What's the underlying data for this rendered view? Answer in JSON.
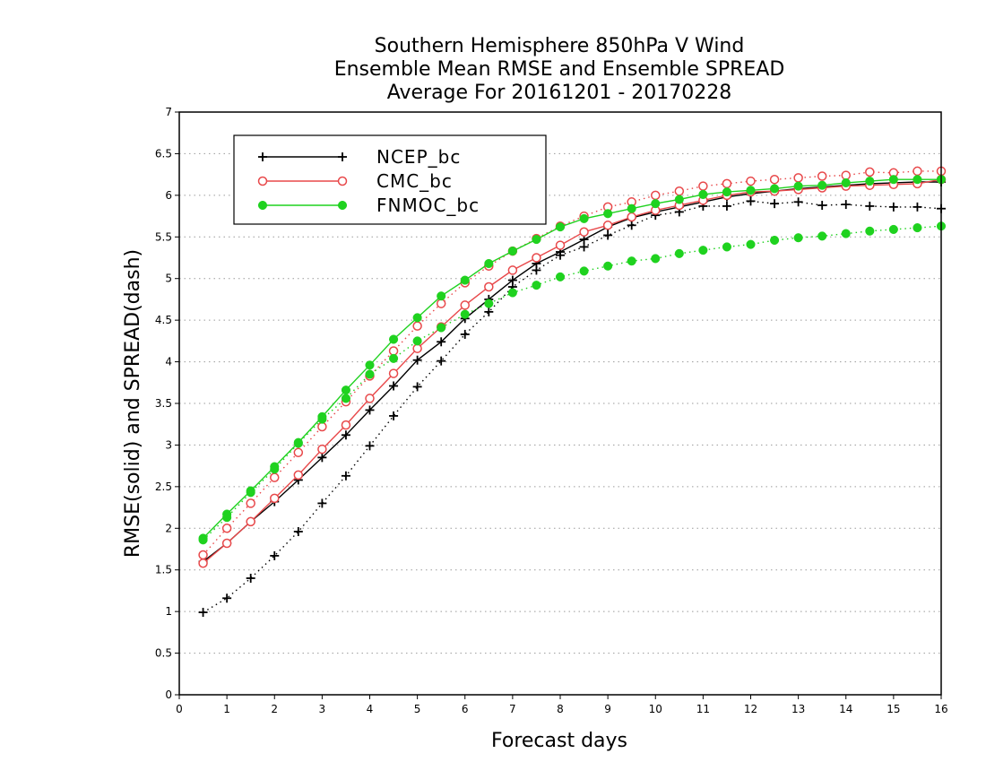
{
  "chart_data": {
    "type": "line",
    "title_lines": [
      "Southern Hemisphere 850hPa V Wind",
      "Ensemble Mean RMSE and Ensemble SPREAD",
      "Average For 20161201 - 20170228"
    ],
    "xlabel": "Forecast days",
    "ylabel": "RMSE(solid) and SPREAD(dash)",
    "xlim": [
      0,
      16
    ],
    "ylim": [
      0,
      7
    ],
    "xticks": [
      "0",
      "1",
      "2",
      "3",
      "4",
      "5",
      "6",
      "7",
      "8",
      "9",
      "10",
      "11",
      "12",
      "13",
      "14",
      "15",
      "16"
    ],
    "yticks": [
      "0",
      "0.5",
      "1",
      "1.5",
      "2",
      "2.5",
      "3",
      "3.5",
      "4",
      "4.5",
      "5",
      "5.5",
      "6",
      "6.5",
      "7"
    ],
    "grid": true,
    "legend_position": "top-left",
    "x": [
      0.5,
      1,
      1.5,
      2,
      2.5,
      3,
      3.5,
      4,
      4.5,
      5,
      5.5,
      6,
      6.5,
      7,
      7.5,
      8,
      8.5,
      9,
      9.5,
      10,
      10.5,
      11,
      11.5,
      12,
      12.5,
      13,
      13.5,
      14,
      14.5,
      15,
      15.5,
      16
    ],
    "series": [
      {
        "name": "NCEP_bc",
        "color": "#000000",
        "marker": "plus",
        "rmse": [
          1.6,
          1.82,
          2.08,
          2.32,
          2.58,
          2.85,
          3.12,
          3.42,
          3.71,
          4.02,
          4.24,
          4.52,
          4.75,
          4.98,
          5.18,
          5.32,
          5.47,
          5.62,
          5.73,
          5.8,
          5.86,
          5.92,
          5.98,
          6.02,
          6.05,
          6.08,
          6.1,
          6.12,
          6.14,
          6.15,
          6.16,
          6.16
        ],
        "spread": [
          0.99,
          1.16,
          1.4,
          1.67,
          1.96,
          2.3,
          2.63,
          2.99,
          3.35,
          3.7,
          4.01,
          4.33,
          4.6,
          4.9,
          5.1,
          5.28,
          5.38,
          5.52,
          5.64,
          5.76,
          5.8,
          5.87,
          5.87,
          5.93,
          5.9,
          5.92,
          5.88,
          5.89,
          5.87,
          5.86,
          5.86,
          5.84
        ]
      },
      {
        "name": "CMC_bc",
        "color": "#e8484a",
        "marker": "open-circle",
        "rmse": [
          1.58,
          1.82,
          2.08,
          2.36,
          2.64,
          2.95,
          3.24,
          3.56,
          3.86,
          4.16,
          4.42,
          4.68,
          4.9,
          5.1,
          5.25,
          5.4,
          5.56,
          5.64,
          5.74,
          5.82,
          5.88,
          5.94,
          6.0,
          6.04,
          6.05,
          6.07,
          6.09,
          6.11,
          6.12,
          6.13,
          6.14,
          6.19
        ],
        "spread": [
          1.68,
          2.0,
          2.3,
          2.61,
          2.91,
          3.22,
          3.52,
          3.83,
          4.13,
          4.43,
          4.7,
          4.95,
          5.15,
          5.33,
          5.48,
          5.63,
          5.75,
          5.86,
          5.92,
          6.0,
          6.05,
          6.11,
          6.14,
          6.17,
          6.19,
          6.21,
          6.23,
          6.24,
          6.28,
          6.27,
          6.29,
          6.29
        ]
      },
      {
        "name": "FNMOC_bc",
        "color": "#1fd21f",
        "marker": "filled-circle",
        "rmse": [
          1.88,
          2.17,
          2.45,
          2.74,
          3.03,
          3.34,
          3.66,
          3.96,
          4.27,
          4.53,
          4.79,
          4.98,
          5.18,
          5.33,
          5.47,
          5.62,
          5.72,
          5.78,
          5.84,
          5.9,
          5.95,
          6.01,
          6.04,
          6.06,
          6.08,
          6.11,
          6.12,
          6.15,
          6.17,
          6.19,
          6.19,
          6.19
        ],
        "spread": [
          1.86,
          2.13,
          2.43,
          2.71,
          3.02,
          3.31,
          3.56,
          3.85,
          4.04,
          4.25,
          4.41,
          4.57,
          4.7,
          4.83,
          4.92,
          5.02,
          5.09,
          5.15,
          5.21,
          5.24,
          5.3,
          5.34,
          5.38,
          5.41,
          5.46,
          5.49,
          5.51,
          5.54,
          5.57,
          5.59,
          5.61,
          5.63
        ]
      }
    ]
  }
}
